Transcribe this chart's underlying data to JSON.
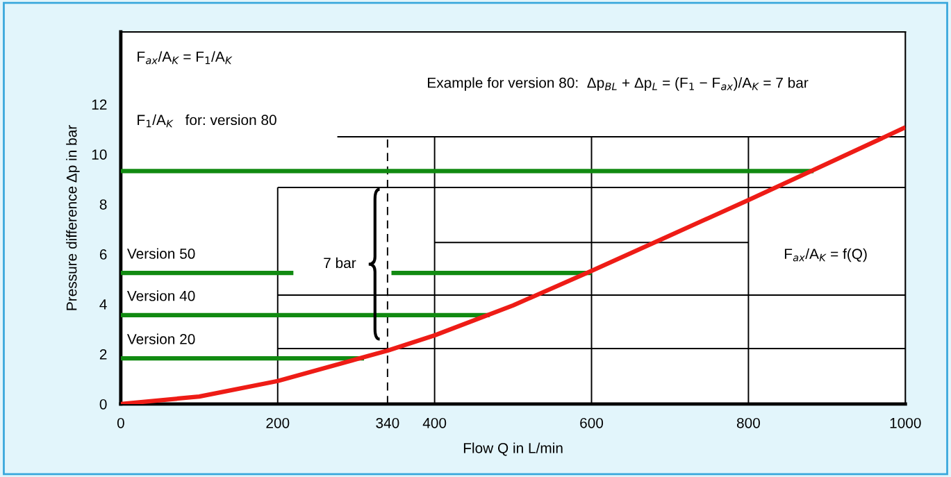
{
  "chart_data": {
    "type": "line",
    "xlabel": "Flow Q in L/min",
    "ylabel": "Pressure difference Δp in bar",
    "xlim": [
      0,
      1000
    ],
    "xticks": [
      0,
      200,
      340,
      400,
      600,
      800,
      1000
    ],
    "ylim": [
      0,
      14.9
    ],
    "yticks": [
      0,
      2,
      4,
      6,
      8,
      10,
      12
    ],
    "grid": false,
    "legend": false,
    "series": [
      {
        "color": "#000000",
        "x": [
          276,
          1000
        ],
        "values": [
          10.7,
          10.7
        ]
      },
      {
        "color": "#000000",
        "x": [
          200,
          1000
        ],
        "values": [
          8.67,
          8.67
        ]
      },
      {
        "color": "#000000",
        "x": [
          400,
          800
        ],
        "values": [
          6.47,
          6.47
        ]
      },
      {
        "color": "#000000",
        "x": [
          200,
          1000
        ],
        "values": [
          4.36,
          4.36
        ]
      },
      {
        "color": "#000000",
        "x": [
          200,
          1000
        ],
        "values": [
          2.22,
          2.22
        ]
      },
      {
        "color": "#000000",
        "x": [
          200,
          200
        ],
        "values": [
          0,
          8.67
        ]
      },
      {
        "color": "#000000",
        "x": [
          400,
          400
        ],
        "values": [
          0,
          10.7
        ]
      },
      {
        "color": "#000000",
        "x": [
          600,
          600
        ],
        "values": [
          0,
          10.7
        ]
      },
      {
        "color": "#000000",
        "x": [
          800,
          800
        ],
        "values": [
          0,
          10.7
        ]
      },
      {
        "color": "#000000",
        "x": [
          340,
          340
        ],
        "values": [
          0,
          10.7
        ],
        "line_style": "dashed"
      },
      {
        "color": "#118a11",
        "x": [
          0,
          883
        ],
        "values": [
          9.33,
          9.33
        ]
      },
      {
        "name": "Version 50",
        "color": "#118a11",
        "x": [
          0,
          220,
          280,
          345,
          600
        ],
        "values": [
          5.25,
          5.25,
          null,
          5.25,
          5.25
        ]
      },
      {
        "name": "Version 40",
        "color": "#118a11",
        "x": [
          0,
          470
        ],
        "values": [
          3.56,
          3.56
        ]
      },
      {
        "name": "Version 20",
        "color": "#118a11",
        "x": [
          0,
          310
        ],
        "values": [
          1.83,
          1.83
        ]
      },
      {
        "color": "#ee1c16",
        "x": [
          0,
          100,
          200,
          340,
          400,
          500,
          600,
          700,
          800,
          900,
          1000
        ],
        "values": [
          0,
          0.3,
          0.92,
          2.14,
          2.75,
          3.95,
          5.33,
          6.75,
          8.17,
          9.62,
          11.08
        ]
      }
    ],
    "annotations": [
      "F$_{ax}$/A$_{K}$ = F$_{1}$/A$_{K}$",
      "F$_{1}$/A$_{K}$   for: version 80",
      "Example for version 80:  Δp$_{BL}$ + Δp$_{L}$ = (F$_{1}$ − F$_{ax}$)/A$_{K}$ = 7 bar",
      {
        "text": "7 bar",
        "x": 340,
        "y": 5.6
      },
      "F$_{ax}$/A$_{K}$ = f(Q)"
    ]
  }
}
